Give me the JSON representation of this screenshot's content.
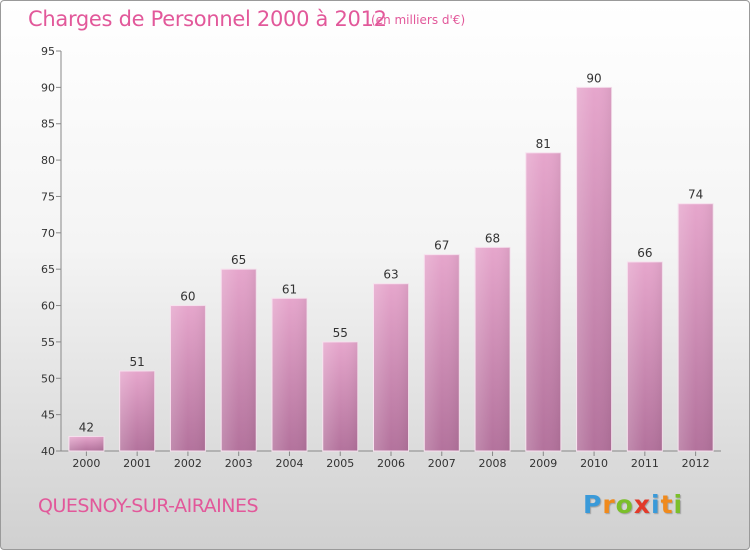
{
  "header": {
    "title": "Charges de Personnel 2000 à 2012",
    "subtitle": "(en milliers d'€)"
  },
  "footer": {
    "city": "QUESNOY-SUR-AIRAINES",
    "logo_letters": [
      {
        "ch": "P",
        "color": "#3a9ad9"
      },
      {
        "ch": "r",
        "color": "#f08a1c"
      },
      {
        "ch": "o",
        "color": "#7bbf2a"
      },
      {
        "ch": "x",
        "color": "#e23a2a"
      },
      {
        "ch": "i",
        "color": "#3a9ad9"
      },
      {
        "ch": "t",
        "color": "#f08a1c"
      },
      {
        "ch": "i",
        "color": "#7bbf2a"
      }
    ]
  },
  "chart_data": {
    "type": "bar",
    "title": "Charges de Personnel 2000 à 2012",
    "subtitle": "(en milliers d'€)",
    "categories": [
      "2000",
      "2001",
      "2002",
      "2003",
      "2004",
      "2005",
      "2006",
      "2007",
      "2008",
      "2009",
      "2010",
      "2011",
      "2012"
    ],
    "values": [
      42,
      51,
      60,
      65,
      61,
      55,
      63,
      67,
      68,
      81,
      90,
      66,
      74
    ],
    "ylim": [
      40,
      95
    ],
    "yticks": [
      40,
      45,
      50,
      55,
      60,
      65,
      70,
      75,
      80,
      85,
      90,
      95
    ],
    "grid": false,
    "bar_color_top": "#e6a6cc",
    "bar_color_bottom": "#b3729c"
  }
}
